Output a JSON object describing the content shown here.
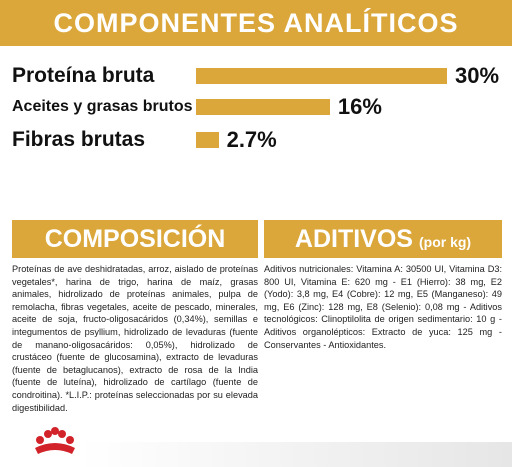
{
  "chart_data": {
    "type": "bar",
    "orientation": "horizontal",
    "title": "COMPONENTES ANALÍTICOS",
    "categories": [
      "Proteína bruta",
      "Aceites y grasas brutos",
      "Fibras brutas"
    ],
    "values": [
      30,
      16,
      2.7
    ],
    "value_labels": [
      "30%",
      "16%",
      "2.7%"
    ],
    "color": "#dba73a",
    "xlim": [
      0,
      30
    ]
  },
  "composition": {
    "title": "COMPOSICIÓN",
    "text": "Proteínas de ave deshidratadas, arroz, aislado de proteínas vegetales*, harina de trigo, harina de maíz, grasas animales, hidrolizado de proteínas animales, pulpa de remolacha, fibras vegetales, aceite de pescado, minerales, aceite de soja, fructo-oligosacáridos (0,34%), semillas e integumentos de psyllium, hidrolizado de levaduras (fuente de manano-oligosacáridos: 0,05%), hidrolizado de crustáceo (fuente de glucosamina), extracto de levaduras (fuente de betaglucanos), extracto de rosa de la India (fuente de luteína), hidrolizado de cartílago (fuente de condroitina). *L.I.P.: proteínas seleccionadas por su elevada digestibilidad."
  },
  "additives": {
    "title": "ADITIVOS",
    "subtitle": "(por kg)",
    "text": "Aditivos nutricionales: Vitamina A: 30500 UI, Vitamina D3: 800 UI, Vitamina E: 620 mg - E1 (Hierro): 38 mg, E2 (Yodo): 3,8 mg, E4 (Cobre): 12 mg, E5 (Manganeso): 49 mg, E6 (Zinc): 128 mg, E8 (Selenio): 0,08 mg - Aditivos tecnológicos: Clinoptilolita de origen sedimentario: 10 g - Aditivos organolépticos: Extracto de yuca: 125 mg - Conservantes - Antioxidantes."
  }
}
